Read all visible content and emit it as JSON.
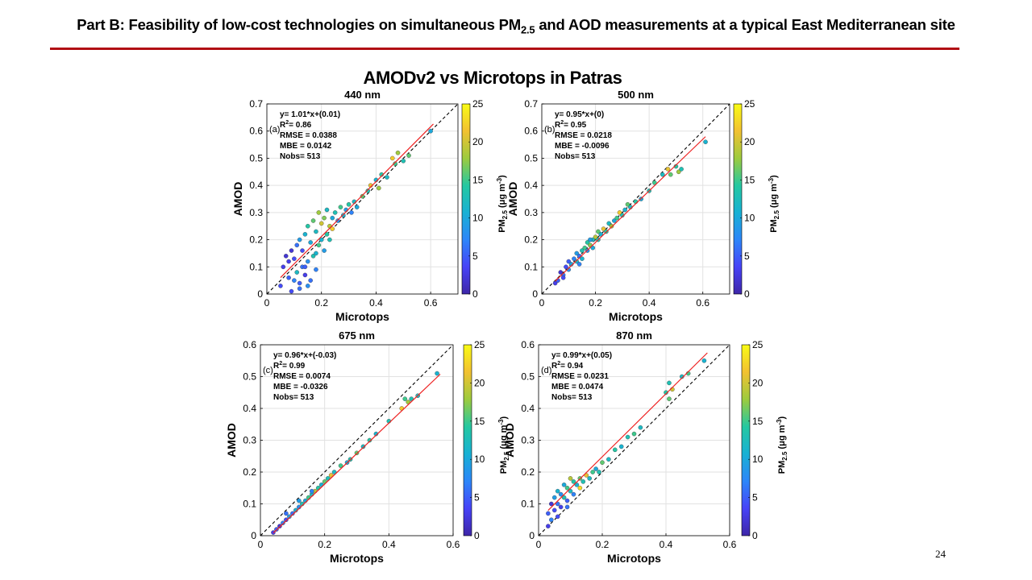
{
  "slide": {
    "header_main": "Part B: Feasibility of low-cost technologies on simultaneous PM",
    "header_sub": "2.5",
    "header_tail": " and AOD measurements at a typical East Mediterranean site",
    "figure_title": "AMODv2 vs Microtops in Patras",
    "page_number": "24"
  },
  "colors": {
    "accent_rule": "#b10f14",
    "fit_line": "#ee2222",
    "one_to_one": "#000000",
    "grid": "#e2e2e2",
    "colormap": [
      "#3e26a8",
      "#4743f7",
      "#2d86f9",
      "#18b1d4",
      "#25c8a1",
      "#9dcb3e",
      "#f2c131",
      "#f9fb15"
    ]
  },
  "chart_data": [
    {
      "type": "scatter",
      "panel": "(a)",
      "title": "440 nm",
      "xlabel": "Microtops",
      "ylabel": "AMOD",
      "xlim": [
        0,
        0.7
      ],
      "ylim": [
        0,
        0.7
      ],
      "xticks": [
        "0",
        "0.2",
        "0.4",
        "0.6"
      ],
      "yticks": [
        "0",
        "0.1",
        "0.2",
        "0.3",
        "0.4",
        "0.5",
        "0.6",
        "0.7"
      ],
      "fit": {
        "slope": 1.01,
        "intercept": 0.01,
        "x_range": [
          0.05,
          0.61
        ]
      },
      "stats": {
        "equation": "y= 1.01*x+(0.01)",
        "r2": "= 0.86",
        "rmse": "RMSE = 0.0388",
        "mbe": "MBE = 0.0142",
        "nobs": "Nobs= 513"
      },
      "colorbar": {
        "label": "PM",
        "label_sub": "2.5",
        "label_unit": " (μg m",
        "label_exp": "-3",
        "label_end": ")",
        "range": [
          0,
          25
        ],
        "ticks": [
          "0",
          "5",
          "10",
          "15",
          "20",
          "25"
        ]
      },
      "points": [
        [
          0.05,
          0.03,
          4
        ],
        [
          0.06,
          0.1,
          3
        ],
        [
          0.07,
          0.14,
          2
        ],
        [
          0.08,
          0.06,
          5
        ],
        [
          0.08,
          0.12,
          3
        ],
        [
          0.09,
          0.16,
          2
        ],
        [
          0.1,
          0.05,
          7
        ],
        [
          0.1,
          0.13,
          4
        ],
        [
          0.11,
          0.08,
          12
        ],
        [
          0.11,
          0.18,
          6
        ],
        [
          0.12,
          0.04,
          5
        ],
        [
          0.12,
          0.2,
          9
        ],
        [
          0.13,
          0.1,
          6
        ],
        [
          0.13,
          0.16,
          4
        ],
        [
          0.14,
          0.07,
          3
        ],
        [
          0.14,
          0.22,
          11
        ],
        [
          0.15,
          0.12,
          8
        ],
        [
          0.15,
          0.25,
          14
        ],
        [
          0.16,
          0.05,
          6
        ],
        [
          0.16,
          0.19,
          10
        ],
        [
          0.17,
          0.14,
          13
        ],
        [
          0.17,
          0.27,
          16
        ],
        [
          0.18,
          0.09,
          7
        ],
        [
          0.18,
          0.23,
          12
        ],
        [
          0.19,
          0.18,
          15
        ],
        [
          0.19,
          0.3,
          18
        ],
        [
          0.2,
          0.2,
          11
        ],
        [
          0.2,
          0.26,
          20
        ],
        [
          0.21,
          0.16,
          9
        ],
        [
          0.21,
          0.28,
          17
        ],
        [
          0.22,
          0.22,
          14
        ],
        [
          0.22,
          0.31,
          12
        ],
        [
          0.23,
          0.25,
          19
        ],
        [
          0.24,
          0.28,
          10
        ],
        [
          0.24,
          0.24,
          22
        ],
        [
          0.25,
          0.3,
          13
        ],
        [
          0.26,
          0.27,
          8
        ],
        [
          0.27,
          0.32,
          15
        ],
        [
          0.28,
          0.29,
          11
        ],
        [
          0.29,
          0.31,
          9
        ],
        [
          0.3,
          0.33,
          14
        ],
        [
          0.31,
          0.3,
          7
        ],
        [
          0.32,
          0.34,
          12
        ],
        [
          0.33,
          0.32,
          10
        ],
        [
          0.35,
          0.36,
          16
        ],
        [
          0.37,
          0.38,
          13
        ],
        [
          0.38,
          0.4,
          21
        ],
        [
          0.4,
          0.42,
          11
        ],
        [
          0.41,
          0.39,
          18
        ],
        [
          0.42,
          0.44,
          14
        ],
        [
          0.44,
          0.43,
          12
        ],
        [
          0.46,
          0.5,
          22
        ],
        [
          0.47,
          0.48,
          15
        ],
        [
          0.48,
          0.52,
          18
        ],
        [
          0.5,
          0.49,
          13
        ],
        [
          0.52,
          0.51,
          16
        ],
        [
          0.6,
          0.6,
          10
        ],
        [
          0.15,
          0.03,
          8
        ],
        [
          0.14,
          0.1,
          5
        ],
        [
          0.12,
          0.02,
          6
        ],
        [
          0.09,
          0.01,
          4
        ],
        [
          0.18,
          0.15,
          11
        ],
        [
          0.23,
          0.2,
          13
        ]
      ]
    },
    {
      "type": "scatter",
      "panel": "(b)",
      "title": "500 nm",
      "xlabel": "Microtops",
      "ylabel": "AMOD",
      "xlim": [
        0,
        0.7
      ],
      "ylim": [
        0,
        0.7
      ],
      "xticks": [
        "0",
        "0.2",
        "0.4",
        "0.6"
      ],
      "yticks": [
        "0",
        "0.1",
        "0.2",
        "0.3",
        "0.4",
        "0.5",
        "0.6",
        "0.7"
      ],
      "fit": {
        "slope": 0.95,
        "intercept": 0,
        "x_range": [
          0.05,
          0.61
        ]
      },
      "stats": {
        "equation": "y= 0.95*x+(0)",
        "r2": "= 0.95",
        "rmse": "RMSE = 0.0218",
        "mbe": "MBE = -0.0096",
        "nobs": "Nobs= 513"
      },
      "colorbar": {
        "label": "PM",
        "label_sub": "2.5",
        "label_unit": " (μg m",
        "label_exp": "-3",
        "label_end": ")",
        "range": [
          0,
          25
        ],
        "ticks": [
          "0",
          "5",
          "10",
          "15",
          "20",
          "25"
        ]
      },
      "points": [
        [
          0.05,
          0.04,
          3
        ],
        [
          0.06,
          0.05,
          5
        ],
        [
          0.07,
          0.08,
          2
        ],
        [
          0.08,
          0.07,
          6
        ],
        [
          0.09,
          0.1,
          4
        ],
        [
          0.1,
          0.09,
          8
        ],
        [
          0.1,
          0.12,
          5
        ],
        [
          0.11,
          0.11,
          10
        ],
        [
          0.12,
          0.13,
          7
        ],
        [
          0.13,
          0.12,
          12
        ],
        [
          0.13,
          0.15,
          9
        ],
        [
          0.14,
          0.14,
          6
        ],
        [
          0.15,
          0.16,
          13
        ],
        [
          0.15,
          0.13,
          11
        ],
        [
          0.16,
          0.17,
          15
        ],
        [
          0.17,
          0.16,
          8
        ],
        [
          0.17,
          0.19,
          14
        ],
        [
          0.18,
          0.18,
          17
        ],
        [
          0.19,
          0.2,
          12
        ],
        [
          0.19,
          0.17,
          10
        ],
        [
          0.2,
          0.21,
          19
        ],
        [
          0.21,
          0.2,
          13
        ],
        [
          0.21,
          0.23,
          16
        ],
        [
          0.22,
          0.22,
          11
        ],
        [
          0.23,
          0.24,
          21
        ],
        [
          0.24,
          0.23,
          14
        ],
        [
          0.25,
          0.26,
          12
        ],
        [
          0.26,
          0.25,
          18
        ],
        [
          0.27,
          0.27,
          10
        ],
        [
          0.28,
          0.28,
          15
        ],
        [
          0.29,
          0.3,
          22
        ],
        [
          0.3,
          0.29,
          13
        ],
        [
          0.31,
          0.31,
          11
        ],
        [
          0.32,
          0.33,
          16
        ],
        [
          0.33,
          0.32,
          12
        ],
        [
          0.35,
          0.34,
          14
        ],
        [
          0.37,
          0.35,
          10
        ],
        [
          0.4,
          0.38,
          13
        ],
        [
          0.42,
          0.41,
          15
        ],
        [
          0.45,
          0.44,
          12
        ],
        [
          0.47,
          0.46,
          21
        ],
        [
          0.48,
          0.44,
          16
        ],
        [
          0.5,
          0.47,
          14
        ],
        [
          0.51,
          0.45,
          18
        ],
        [
          0.52,
          0.46,
          13
        ],
        [
          0.61,
          0.56,
          11
        ],
        [
          0.08,
          0.06,
          4
        ],
        [
          0.14,
          0.11,
          7
        ],
        [
          0.18,
          0.2,
          9
        ]
      ]
    },
    {
      "type": "scatter",
      "panel": "(c)",
      "title": "675 nm",
      "xlabel": "Microtops",
      "ylabel": "AMOD",
      "xlim": [
        0,
        0.6
      ],
      "ylim": [
        0,
        0.6
      ],
      "xticks": [
        "0",
        "0.2",
        "0.4",
        "0.6"
      ],
      "yticks": [
        "0",
        "0.1",
        "0.2",
        "0.3",
        "0.4",
        "0.5",
        "0.6"
      ],
      "fit": {
        "slope": 0.96,
        "intercept": -0.03,
        "x_range": [
          0.04,
          0.56
        ]
      },
      "stats": {
        "equation": "y= 0.96*x+(-0.03)",
        "r2": "= 0.99",
        "rmse": "RMSE = 0.0074",
        "mbe": "MBE = -0.0326",
        "nobs": "Nobs= 513"
      },
      "colorbar": {
        "label": "PM",
        "label_sub": "2.5",
        "label_unit": " (μg m",
        "label_exp": "-3",
        "label_end": ")",
        "range": [
          0,
          25
        ],
        "ticks": [
          "0",
          "5",
          "10",
          "15",
          "20",
          "25"
        ]
      },
      "points": [
        [
          0.04,
          0.01,
          3
        ],
        [
          0.05,
          0.02,
          5
        ],
        [
          0.06,
          0.03,
          2
        ],
        [
          0.07,
          0.04,
          7
        ],
        [
          0.08,
          0.05,
          4
        ],
        [
          0.09,
          0.06,
          9
        ],
        [
          0.1,
          0.07,
          6
        ],
        [
          0.11,
          0.08,
          11
        ],
        [
          0.12,
          0.09,
          8
        ],
        [
          0.13,
          0.1,
          13
        ],
        [
          0.14,
          0.11,
          10
        ],
        [
          0.15,
          0.12,
          15
        ],
        [
          0.16,
          0.13,
          12
        ],
        [
          0.17,
          0.14,
          19
        ],
        [
          0.18,
          0.15,
          14
        ],
        [
          0.19,
          0.16,
          11
        ],
        [
          0.2,
          0.17,
          16
        ],
        [
          0.21,
          0.18,
          13
        ],
        [
          0.22,
          0.19,
          21
        ],
        [
          0.23,
          0.2,
          12
        ],
        [
          0.25,
          0.22,
          15
        ],
        [
          0.27,
          0.23,
          10
        ],
        [
          0.28,
          0.24,
          13
        ],
        [
          0.3,
          0.26,
          16
        ],
        [
          0.32,
          0.28,
          12
        ],
        [
          0.34,
          0.3,
          14
        ],
        [
          0.36,
          0.32,
          11
        ],
        [
          0.4,
          0.36,
          13
        ],
        [
          0.44,
          0.4,
          22
        ],
        [
          0.45,
          0.43,
          15
        ],
        [
          0.46,
          0.42,
          18
        ],
        [
          0.47,
          0.43,
          13
        ],
        [
          0.49,
          0.44,
          12
        ],
        [
          0.55,
          0.51,
          11
        ],
        [
          0.08,
          0.07,
          6
        ],
        [
          0.12,
          0.11,
          9
        ],
        [
          0.16,
          0.14,
          7
        ]
      ]
    },
    {
      "type": "scatter",
      "panel": "(d)",
      "title": "870 nm",
      "xlabel": "Microtops",
      "ylabel": "AMOD",
      "xlim": [
        0,
        0.6
      ],
      "ylim": [
        0,
        0.6
      ],
      "xticks": [
        "0",
        "0.2",
        "0.4",
        "0.6"
      ],
      "yticks": [
        "0",
        "0.1",
        "0.2",
        "0.3",
        "0.4",
        "0.5",
        "0.6"
      ],
      "fit": {
        "slope": 0.99,
        "intercept": 0.05,
        "x_range": [
          0.03,
          0.53
        ]
      },
      "stats": {
        "equation": "y= 0.99*x+(0.05)",
        "r2": "= 0.94",
        "rmse": "RMSE = 0.0231",
        "mbe": "MBE = 0.0474",
        "nobs": "Nobs= 513"
      },
      "colorbar": {
        "label": "PM",
        "label_sub": "2.5",
        "label_unit": " (μg m",
        "label_exp": "-3",
        "label_end": ")",
        "range": [
          0,
          25
        ],
        "ticks": [
          "0",
          "5",
          "10",
          "15",
          "20",
          "25"
        ]
      },
      "points": [
        [
          0.03,
          0.03,
          3
        ],
        [
          0.03,
          0.07,
          5
        ],
        [
          0.04,
          0.1,
          2
        ],
        [
          0.04,
          0.05,
          7
        ],
        [
          0.05,
          0.08,
          4
        ],
        [
          0.05,
          0.12,
          9
        ],
        [
          0.06,
          0.1,
          6
        ],
        [
          0.06,
          0.14,
          11
        ],
        [
          0.07,
          0.09,
          3
        ],
        [
          0.07,
          0.13,
          8
        ],
        [
          0.08,
          0.12,
          13
        ],
        [
          0.08,
          0.16,
          10
        ],
        [
          0.09,
          0.11,
          5
        ],
        [
          0.09,
          0.15,
          15
        ],
        [
          0.1,
          0.14,
          12
        ],
        [
          0.1,
          0.18,
          19
        ],
        [
          0.11,
          0.13,
          7
        ],
        [
          0.11,
          0.17,
          14
        ],
        [
          0.12,
          0.16,
          11
        ],
        [
          0.13,
          0.18,
          16
        ],
        [
          0.14,
          0.17,
          13
        ],
        [
          0.15,
          0.19,
          21
        ],
        [
          0.16,
          0.18,
          12
        ],
        [
          0.17,
          0.2,
          15
        ],
        [
          0.18,
          0.21,
          10
        ],
        [
          0.19,
          0.2,
          13
        ],
        [
          0.2,
          0.23,
          16
        ],
        [
          0.22,
          0.24,
          12
        ],
        [
          0.24,
          0.27,
          14
        ],
        [
          0.26,
          0.28,
          11
        ],
        [
          0.28,
          0.31,
          13
        ],
        [
          0.3,
          0.32,
          15
        ],
        [
          0.32,
          0.34,
          12
        ],
        [
          0.4,
          0.45,
          14
        ],
        [
          0.41,
          0.48,
          13
        ],
        [
          0.41,
          0.43,
          16
        ],
        [
          0.42,
          0.46,
          20
        ],
        [
          0.45,
          0.5,
          12
        ],
        [
          0.47,
          0.51,
          15
        ],
        [
          0.52,
          0.55,
          11
        ],
        [
          0.06,
          0.06,
          4
        ],
        [
          0.09,
          0.09,
          6
        ],
        [
          0.13,
          0.15,
          23
        ]
      ]
    }
  ]
}
